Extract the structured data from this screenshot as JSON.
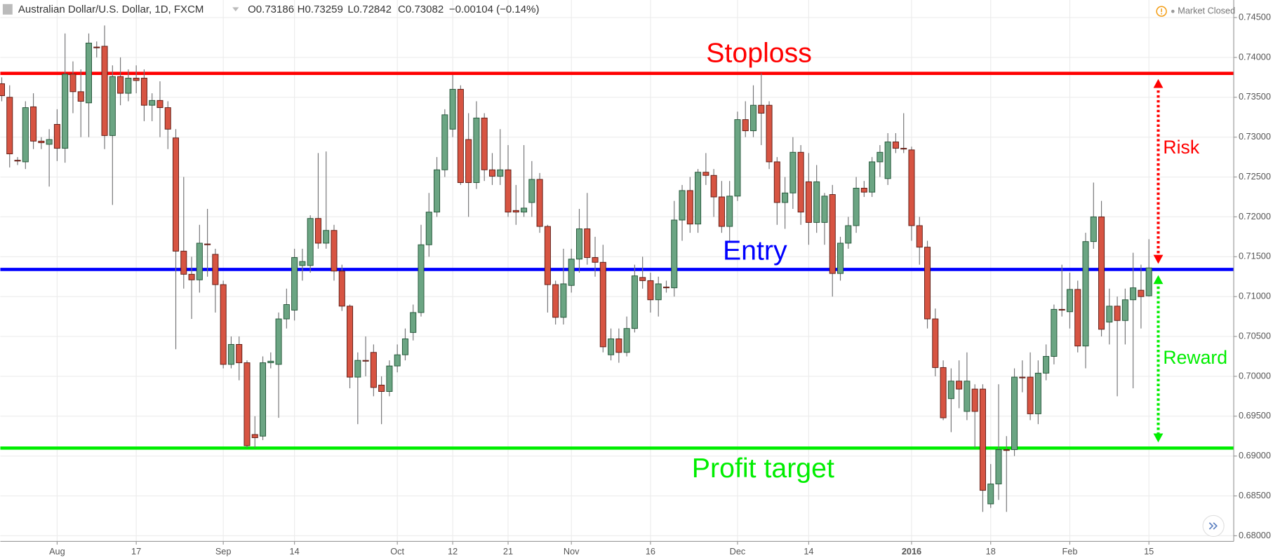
{
  "chart_data": {
    "type": "candlestick",
    "title": "Australian Dollar/U.S. Dollar, 1D, FXCM",
    "ohlc_labels": [
      "O0.73186",
      "H0.73259",
      "L0.72842",
      "C0.73082"
    ],
    "change_label": "−0.00104 (−0.14%)",
    "status": "Market Closed",
    "up_color": "#6ba583",
    "down_color": "#d75442",
    "grid": true,
    "ylim": [
      0.6793,
      0.7472
    ],
    "yticks": [
      {
        "value": 0.68,
        "label": "0.68000"
      },
      {
        "value": 0.685,
        "label": "0.68500"
      },
      {
        "value": 0.69,
        "label": "0.69000"
      },
      {
        "value": 0.695,
        "label": "0.69500"
      },
      {
        "value": 0.7,
        "label": "0.70000"
      },
      {
        "value": 0.705,
        "label": "0.70500"
      },
      {
        "value": 0.71,
        "label": "0.71000"
      },
      {
        "value": 0.715,
        "label": "0.71500"
      },
      {
        "value": 0.72,
        "label": "0.72000"
      },
      {
        "value": 0.725,
        "label": "0.72500"
      },
      {
        "value": 0.73,
        "label": "0.73000"
      },
      {
        "value": 0.735,
        "label": "0.73500"
      },
      {
        "value": 0.74,
        "label": "0.74000"
      },
      {
        "value": 0.745,
        "label": "0.74500"
      }
    ],
    "categories": [
      null,
      null,
      null,
      null,
      null,
      null,
      null,
      "Aug",
      null,
      null,
      null,
      null,
      null,
      null,
      null,
      null,
      null,
      "17",
      null,
      null,
      null,
      null,
      null,
      null,
      null,
      null,
      null,
      null,
      "Sep",
      null,
      null,
      null,
      null,
      null,
      null,
      null,
      null,
      "14",
      null,
      null,
      null,
      null,
      null,
      null,
      null,
      null,
      null,
      null,
      null,
      null,
      "Oct",
      null,
      null,
      null,
      null,
      null,
      null,
      "12",
      null,
      null,
      null,
      null,
      null,
      null,
      "21",
      null,
      null,
      null,
      null,
      null,
      null,
      null,
      "Nov",
      null,
      null,
      null,
      null,
      null,
      null,
      null,
      null,
      null,
      "16",
      null,
      null,
      null,
      null,
      null,
      null,
      null,
      null,
      null,
      null,
      "Dec",
      null,
      null,
      null,
      null,
      null,
      null,
      null,
      null,
      "14",
      null,
      null,
      null,
      null,
      null,
      null,
      null,
      null,
      null,
      null,
      null,
      null,
      "2016",
      null,
      null,
      null,
      null,
      null,
      null,
      null,
      null,
      null,
      "18",
      null,
      null,
      null,
      null,
      null,
      null,
      null,
      null,
      null,
      "Feb",
      null,
      null,
      null,
      null,
      null,
      null,
      null,
      null,
      null,
      "15"
    ],
    "open": [
      0.7367,
      0.735,
      0.7271,
      0.7269,
      0.7338,
      0.7295,
      0.7291,
      0.7316,
      0.7286,
      0.7379,
      0.7357,
      0.7343,
      0.7413,
      0.7414,
      0.7302,
      0.7376,
      0.7355,
      0.7374,
      0.7374,
      0.734,
      0.7346,
      0.7337,
      0.7299,
      0.7157,
      0.7128,
      0.7121,
      0.7166,
      0.7153,
      0.7115,
      0.7015,
      0.704,
      0.7017,
      0.6927,
      0.6925,
      0.7017,
      0.7015,
      0.7072,
      0.7083,
      0.7139,
      0.7139,
      0.7198,
      0.7167,
      0.7183,
      0.7132,
      0.7088,
      0.6999,
      0.702,
      0.703,
      0.6989,
      0.6981,
      0.7013,
      0.7027,
      0.7055,
      0.708,
      0.7165,
      0.7206,
      0.7259,
      0.731,
      0.736,
      0.7297,
      0.7243,
      0.7324,
      0.7259,
      0.7251,
      0.7259,
      0.7208,
      0.7206,
      0.7218,
      0.7247,
      0.7188,
      0.7115,
      0.7074,
      0.7114,
      0.7147,
      0.7185,
      0.7149,
      0.7143,
      0.7027,
      0.7047,
      0.703,
      0.706,
      0.7124,
      0.712,
      0.7096,
      0.7112,
      0.7111,
      0.7196,
      0.7233,
      0.7191,
      0.7256,
      0.7252,
      0.7225,
      0.7188,
      0.7226,
      0.7322,
      0.7308,
      0.734,
      0.734,
      0.7269,
      0.7218,
      0.723,
      0.7281,
      0.7244,
      0.7193,
      0.7193,
      0.7228,
      0.7129,
      0.7167,
      0.7189,
      0.7236,
      0.7231,
      0.7269,
      0.7248,
      0.7294,
      0.7286,
      0.7284,
      0.7189,
      0.7162,
      0.7072,
      0.7011,
      0.6972,
      0.6994,
      0.6956,
      0.6984,
      0.6984,
      0.684,
      0.6865,
      0.6908,
      0.6908,
      0.6999,
      0.6999,
      0.6953,
      0.7004,
      0.7025,
      0.7084,
      0.7081,
      0.7109,
      0.7038,
      0.7169,
      0.72,
      0.7068,
      0.7088,
      0.707,
      0.7096,
      0.7108,
      0.7101
    ],
    "high": [
      0.7375,
      0.7365,
      0.7275,
      0.7345,
      0.7355,
      0.73,
      0.731,
      0.7335,
      0.743,
      0.7395,
      0.7385,
      0.743,
      0.742,
      0.744,
      0.739,
      0.74,
      0.7385,
      0.739,
      0.7385,
      0.7355,
      0.737,
      0.7345,
      0.731,
      0.725,
      0.715,
      0.719,
      0.721,
      0.716,
      0.712,
      0.705,
      0.705,
      0.702,
      0.695,
      0.7025,
      0.703,
      0.708,
      0.711,
      0.716,
      0.716,
      0.7202,
      0.728,
      0.7282,
      0.719,
      0.714,
      0.709,
      0.703,
      0.705,
      0.704,
      0.7,
      0.702,
      0.704,
      0.706,
      0.709,
      0.719,
      0.723,
      0.7275,
      0.7335,
      0.7378,
      0.7365,
      0.733,
      0.7345,
      0.733,
      0.728,
      0.731,
      0.729,
      0.724,
      0.729,
      0.727,
      0.7255,
      0.719,
      0.712,
      0.716,
      0.716,
      0.721,
      0.723,
      0.7175,
      0.7165,
      0.706,
      0.706,
      0.7075,
      0.714,
      0.715,
      0.713,
      0.7125,
      0.712,
      0.722,
      0.724,
      0.725,
      0.726,
      0.728,
      0.726,
      0.7245,
      0.7245,
      0.7332,
      0.7345,
      0.7365,
      0.738,
      0.7345,
      0.7275,
      0.725,
      0.73,
      0.729,
      0.728,
      0.7265,
      0.723,
      0.724,
      0.7175,
      0.72,
      0.725,
      0.7245,
      0.7275,
      0.729,
      0.7305,
      0.7305,
      0.733,
      0.7288,
      0.72,
      0.717,
      0.7085,
      0.702,
      0.701,
      0.702,
      0.703,
      0.699,
      0.699,
      0.689,
      0.699,
      0.6925,
      0.701,
      0.702,
      0.703,
      0.702,
      0.704,
      0.709,
      0.714,
      0.713,
      0.712,
      0.718,
      0.7243,
      0.722,
      0.711,
      0.71,
      0.711,
      0.7155,
      0.714,
      0.7172
    ],
    "low": [
      0.7345,
      0.7262,
      0.7265,
      0.726,
      0.7285,
      0.7285,
      0.7238,
      0.727,
      0.7268,
      0.733,
      0.73,
      0.73,
      0.74,
      0.7285,
      0.7215,
      0.734,
      0.7345,
      0.7355,
      0.732,
      0.732,
      0.73,
      0.7285,
      0.7034,
      0.711,
      0.7072,
      0.7105,
      0.7125,
      0.708,
      0.701,
      0.701,
      0.6995,
      0.691,
      0.691,
      0.692,
      0.701,
      0.6948,
      0.706,
      0.707,
      0.712,
      0.713,
      0.716,
      0.716,
      0.712,
      0.7082,
      0.6985,
      0.694,
      0.7,
      0.6975,
      0.694,
      0.6975,
      0.7005,
      0.702,
      0.7045,
      0.7075,
      0.715,
      0.72,
      0.725,
      0.73,
      0.724,
      0.72,
      0.7235,
      0.7245,
      0.724,
      0.724,
      0.72,
      0.719,
      0.72,
      0.72,
      0.718,
      0.708,
      0.7065,
      0.7065,
      0.7105,
      0.713,
      0.714,
      0.7125,
      0.703,
      0.702,
      0.7017,
      0.7025,
      0.7055,
      0.711,
      0.708,
      0.7075,
      0.7105,
      0.71,
      0.717,
      0.718,
      0.718,
      0.724,
      0.72,
      0.718,
      0.717,
      0.722,
      0.73,
      0.73,
      0.729,
      0.726,
      0.719,
      0.7185,
      0.721,
      0.719,
      0.7165,
      0.718,
      0.7165,
      0.71,
      0.712,
      0.716,
      0.718,
      0.7225,
      0.7225,
      0.725,
      0.724,
      0.728,
      0.728,
      0.717,
      0.714,
      0.706,
      0.7,
      0.6945,
      0.693,
      0.696,
      0.6945,
      0.691,
      0.683,
      0.6835,
      0.6845,
      0.683,
      0.69,
      0.698,
      0.6945,
      0.694,
      0.6995,
      0.7015,
      0.7075,
      0.706,
      0.703,
      0.701,
      0.716,
      0.705,
      0.704,
      0.6975,
      0.704,
      0.6985,
      0.706,
      0.71
    ],
    "close": [
      0.7352,
      0.7279,
      0.727,
      0.7337,
      0.7295,
      0.7293,
      0.7297,
      0.7286,
      0.7379,
      0.7357,
      0.7345,
      0.7418,
      0.7412,
      0.7302,
      0.7376,
      0.7355,
      0.7374,
      0.7371,
      0.734,
      0.7346,
      0.7337,
      0.731,
      0.7157,
      0.7128,
      0.7121,
      0.7167,
      0.7165,
      0.7115,
      0.7015,
      0.704,
      0.7017,
      0.6913,
      0.6923,
      0.7017,
      0.7019,
      0.7072,
      0.709,
      0.7149,
      0.7144,
      0.7198,
      0.7167,
      0.7183,
      0.7132,
      0.7088,
      0.6999,
      0.702,
      0.7019,
      0.6986,
      0.6981,
      0.7013,
      0.7027,
      0.7047,
      0.708,
      0.7165,
      0.7206,
      0.7259,
      0.7328,
      0.736,
      0.7243,
      0.7243,
      0.7324,
      0.7259,
      0.7251,
      0.7259,
      0.7206,
      0.7206,
      0.7211,
      0.7247,
      0.7188,
      0.7115,
      0.7074,
      0.7116,
      0.7147,
      0.7185,
      0.7149,
      0.7143,
      0.7037,
      0.7047,
      0.703,
      0.706,
      0.7126,
      0.712,
      0.7096,
      0.7116,
      0.7111,
      0.7196,
      0.7233,
      0.7191,
      0.7256,
      0.7252,
      0.7225,
      0.7188,
      0.7226,
      0.7322,
      0.7308,
      0.734,
      0.733,
      0.7269,
      0.7218,
      0.723,
      0.7281,
      0.7206,
      0.7193,
      0.7244,
      0.7226,
      0.7129,
      0.7167,
      0.7189,
      0.7236,
      0.7231,
      0.7269,
      0.7281,
      0.7294,
      0.7286,
      0.7285,
      0.7189,
      0.7162,
      0.7072,
      0.7011,
      0.6948,
      0.6994,
      0.6984,
      0.6994,
      0.6956,
      0.6857,
      0.6865,
      0.6908,
      0.6907,
      0.6999,
      0.6998,
      0.6953,
      0.7004,
      0.7025,
      0.7084,
      0.7083,
      0.7109,
      0.7038,
      0.7169,
      0.72,
      0.7059,
      0.7088,
      0.707,
      0.7096,
      0.7111,
      0.71,
      0.7136
    ],
    "levels": [
      {
        "label": "Stoploss",
        "value": 0.738,
        "color": "#ff0000"
      },
      {
        "label": "Entry",
        "value": 0.7134,
        "color": "#0000ff"
      },
      {
        "label": "Profit target",
        "value": 0.691,
        "color": "#00ee00"
      }
    ],
    "ranges": [
      {
        "label": "Risk",
        "color": "#ff0000"
      },
      {
        "label": "Reward",
        "color": "#00ee00"
      }
    ]
  }
}
